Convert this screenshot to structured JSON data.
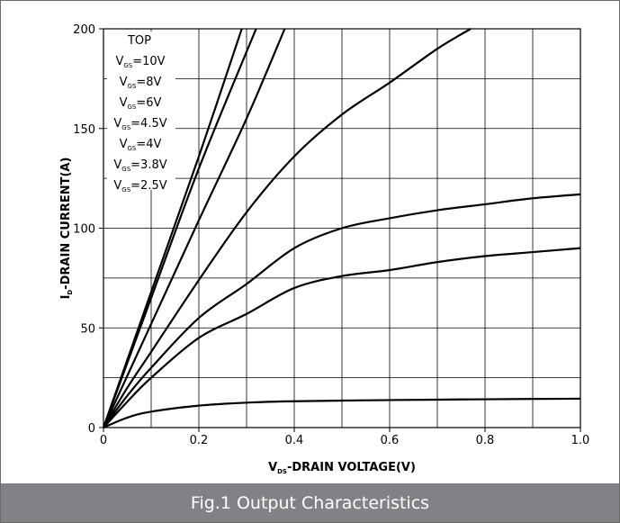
{
  "caption": "Fig.1 Output Characteristics",
  "chart_data": {
    "type": "line",
    "title": "",
    "xlabel": {
      "main": "V",
      "sub": "DS",
      "rest": "-DRAIN VOLTAGE(V)"
    },
    "ylabel": {
      "main": "I",
      "sub": "D",
      "rest": "-DRAIN CURRENT(A)"
    },
    "xlim": [
      0,
      1.0
    ],
    "ylim": [
      0,
      200
    ],
    "x_ticks": [
      0,
      0.2,
      0.4,
      0.6,
      0.8,
      1.0
    ],
    "x_tick_labels": [
      "0",
      "0.2",
      "0.4",
      "0.6",
      "0.8",
      "1.0"
    ],
    "y_ticks": [
      0,
      50,
      100,
      150,
      200
    ],
    "y_tick_labels": [
      "0",
      "50",
      "100",
      "150",
      "200"
    ],
    "grid": true,
    "grid_x_step": 0.1,
    "grid_y_step": 25,
    "line_color": "#000000",
    "grid_color": "#000000",
    "legend": {
      "position": "top-left",
      "header": "TOP",
      "entries": [
        {
          "main": "V",
          "sub": "GS",
          "value": "=10V"
        },
        {
          "main": "V",
          "sub": "GS",
          "value": "=8V"
        },
        {
          "main": "V",
          "sub": "GS",
          "value": "=6V"
        },
        {
          "main": "V",
          "sub": "GS",
          "value": "=4.5V"
        },
        {
          "main": "V",
          "sub": "GS",
          "value": "=4V"
        },
        {
          "main": "V",
          "sub": "GS",
          "value": "=3.8V"
        },
        {
          "main": "V",
          "sub": "GS",
          "value": "=2.5V"
        }
      ]
    },
    "series": [
      {
        "name": "VGS=10V",
        "points": [
          [
            0,
            0
          ],
          [
            0.1,
            68
          ],
          [
            0.2,
            136
          ],
          [
            0.29,
            200
          ]
        ]
      },
      {
        "name": "VGS=8V",
        "points": [
          [
            0,
            0
          ],
          [
            0.1,
            65
          ],
          [
            0.2,
            130
          ],
          [
            0.32,
            200
          ]
        ]
      },
      {
        "name": "VGS=6V",
        "points": [
          [
            0,
            0
          ],
          [
            0.1,
            52
          ],
          [
            0.2,
            104
          ],
          [
            0.3,
            155
          ],
          [
            0.38,
            200
          ]
        ]
      },
      {
        "name": "VGS=4.5V",
        "points": [
          [
            0,
            0
          ],
          [
            0.05,
            20
          ],
          [
            0.1,
            38
          ],
          [
            0.2,
            74
          ],
          [
            0.3,
            108
          ],
          [
            0.4,
            136
          ],
          [
            0.5,
            157
          ],
          [
            0.6,
            173
          ],
          [
            0.7,
            190
          ],
          [
            0.77,
            200
          ]
        ]
      },
      {
        "name": "VGS=4V",
        "points": [
          [
            0,
            0
          ],
          [
            0.05,
            16
          ],
          [
            0.1,
            30
          ],
          [
            0.2,
            55
          ],
          [
            0.3,
            72
          ],
          [
            0.4,
            90
          ],
          [
            0.5,
            100
          ],
          [
            0.6,
            105
          ],
          [
            0.7,
            109
          ],
          [
            0.8,
            112
          ],
          [
            0.9,
            115
          ],
          [
            1.0,
            117
          ]
        ]
      },
      {
        "name": "VGS=3.8V",
        "points": [
          [
            0,
            0
          ],
          [
            0.05,
            13
          ],
          [
            0.1,
            25
          ],
          [
            0.2,
            45
          ],
          [
            0.3,
            57
          ],
          [
            0.4,
            70
          ],
          [
            0.5,
            76
          ],
          [
            0.6,
            79
          ],
          [
            0.7,
            83
          ],
          [
            0.8,
            86
          ],
          [
            0.9,
            88
          ],
          [
            1.0,
            90
          ]
        ]
      },
      {
        "name": "VGS=2.5V",
        "points": [
          [
            0,
            0
          ],
          [
            0.05,
            5
          ],
          [
            0.1,
            8
          ],
          [
            0.2,
            11
          ],
          [
            0.3,
            12.5
          ],
          [
            0.4,
            13.2
          ],
          [
            0.6,
            13.8
          ],
          [
            0.8,
            14.2
          ],
          [
            1.0,
            14.5
          ]
        ]
      }
    ]
  }
}
